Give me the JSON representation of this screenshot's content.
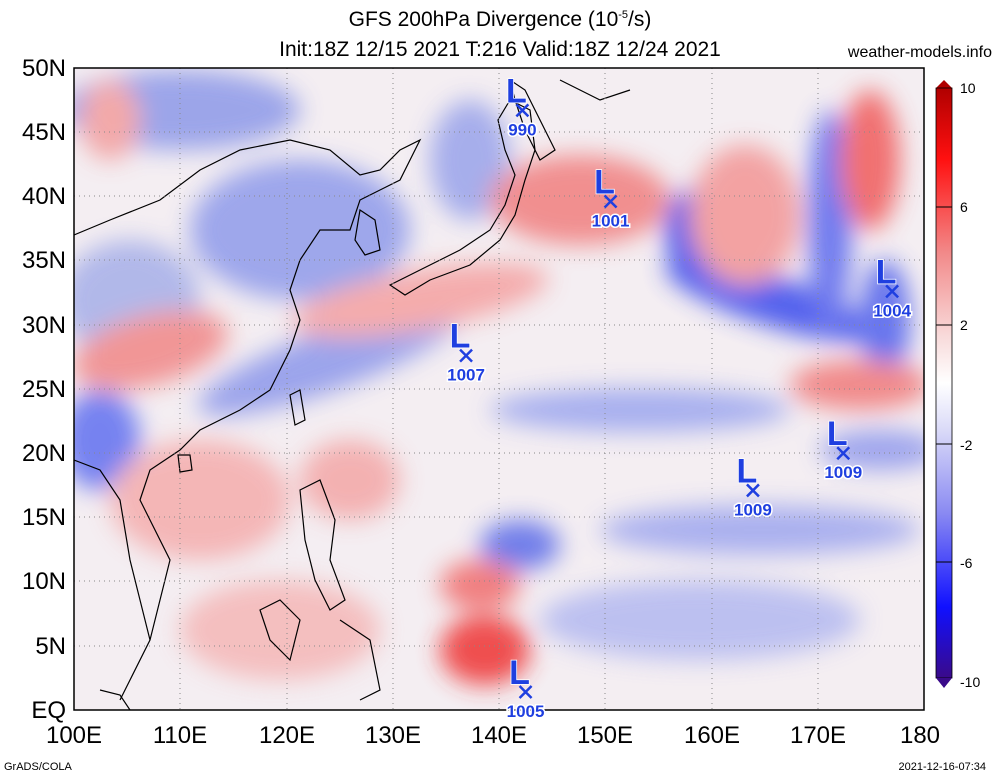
{
  "title": {
    "line1": "GFS 200hPa Divergence (10",
    "exp": "-5",
    "unit_tail": "/s)",
    "line2": "Init:18Z 12/15 2021 T:216 Valid:18Z 12/24 2021"
  },
  "site": "weather-models.info",
  "footer": {
    "left": "GrADS/COLA",
    "right": "2021-12-16-07:34"
  },
  "axes": {
    "lat_labels": [
      "50N",
      "45N",
      "40N",
      "35N",
      "30N",
      "25N",
      "20N",
      "15N",
      "10N",
      "5N",
      "EQ"
    ],
    "lon_labels": [
      "100E",
      "110E",
      "120E",
      "130E",
      "140E",
      "150E",
      "160E",
      "170E",
      "180"
    ]
  },
  "colorbar": {
    "labels": [
      "10",
      "6",
      "2",
      "-2",
      "-6",
      "-10"
    ],
    "colors": [
      "#3a0a8a",
      "#0000ff",
      "#6f6ff0",
      "#c8c8f6",
      "#ffffff",
      "#f6c8c8",
      "#f07070",
      "#ff0000",
      "#b00000"
    ]
  },
  "lows": [
    {
      "pressure": "990",
      "lon": 142.2,
      "lat": 46.7
    },
    {
      "pressure": "1001",
      "lon": 150.5,
      "lat": 39.6
    },
    {
      "pressure": "1007",
      "lon": 136.9,
      "lat": 27.6
    },
    {
      "pressure": "1004",
      "lon": 177.0,
      "lat": 32.6
    },
    {
      "pressure": "1009",
      "lon": 172.4,
      "lat": 20.0
    },
    {
      "pressure": "1009",
      "lon": 163.9,
      "lat": 17.1
    },
    {
      "pressure": "1005",
      "lon": 142.5,
      "lat": 1.4
    }
  ],
  "low_symbol": "L",
  "low_color": "#1f3fe0"
}
